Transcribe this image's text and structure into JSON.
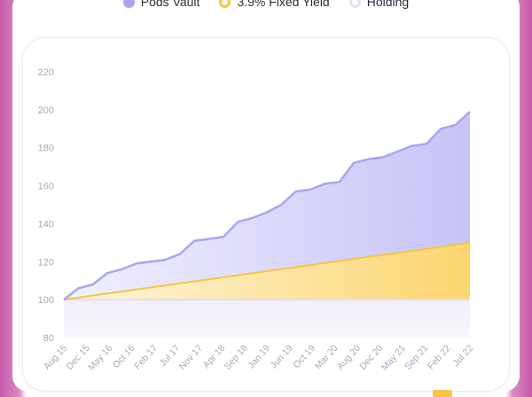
{
  "legend": {
    "pods": "Pods Vault",
    "fixed": "3.9% Fixed Yield",
    "holding": "Holding"
  },
  "colors": {
    "pods": "#a9a6ef",
    "fixed": "#f5c542",
    "holding": "#e2dff3"
  },
  "chart_data": {
    "type": "area",
    "title": "",
    "xlabel": "",
    "ylabel": "",
    "ylim": [
      80,
      220
    ],
    "yticks": [
      80,
      100,
      120,
      140,
      160,
      180,
      200,
      220
    ],
    "grid": false,
    "legend_position": "top-center",
    "x_ticks": [
      "Aug 15",
      "Dec 15",
      "May 16",
      "Oct 16",
      "Feb 17",
      "Jul 17",
      "Nov 17",
      "Apr 18",
      "Sep 18",
      "Jan 19",
      "Jun 19",
      "Oct 19",
      "Mar 20",
      "Aug 20",
      "Dec 20",
      "May 21",
      "Sep 21",
      "Feb 22",
      "Jul 22"
    ],
    "series": [
      {
        "name": "Pods Vault",
        "values": [
          100,
          106,
          108,
          114,
          116,
          119,
          120,
          121,
          124,
          131,
          132,
          133,
          141,
          143,
          146,
          150,
          157,
          158,
          161,
          162,
          172,
          174,
          175,
          178,
          181,
          182,
          190,
          192,
          199
        ]
      },
      {
        "name": "3.9% Fixed Yield",
        "values": [
          100,
          130
        ]
      },
      {
        "name": "Holding",
        "values": [
          100,
          100
        ]
      }
    ]
  }
}
